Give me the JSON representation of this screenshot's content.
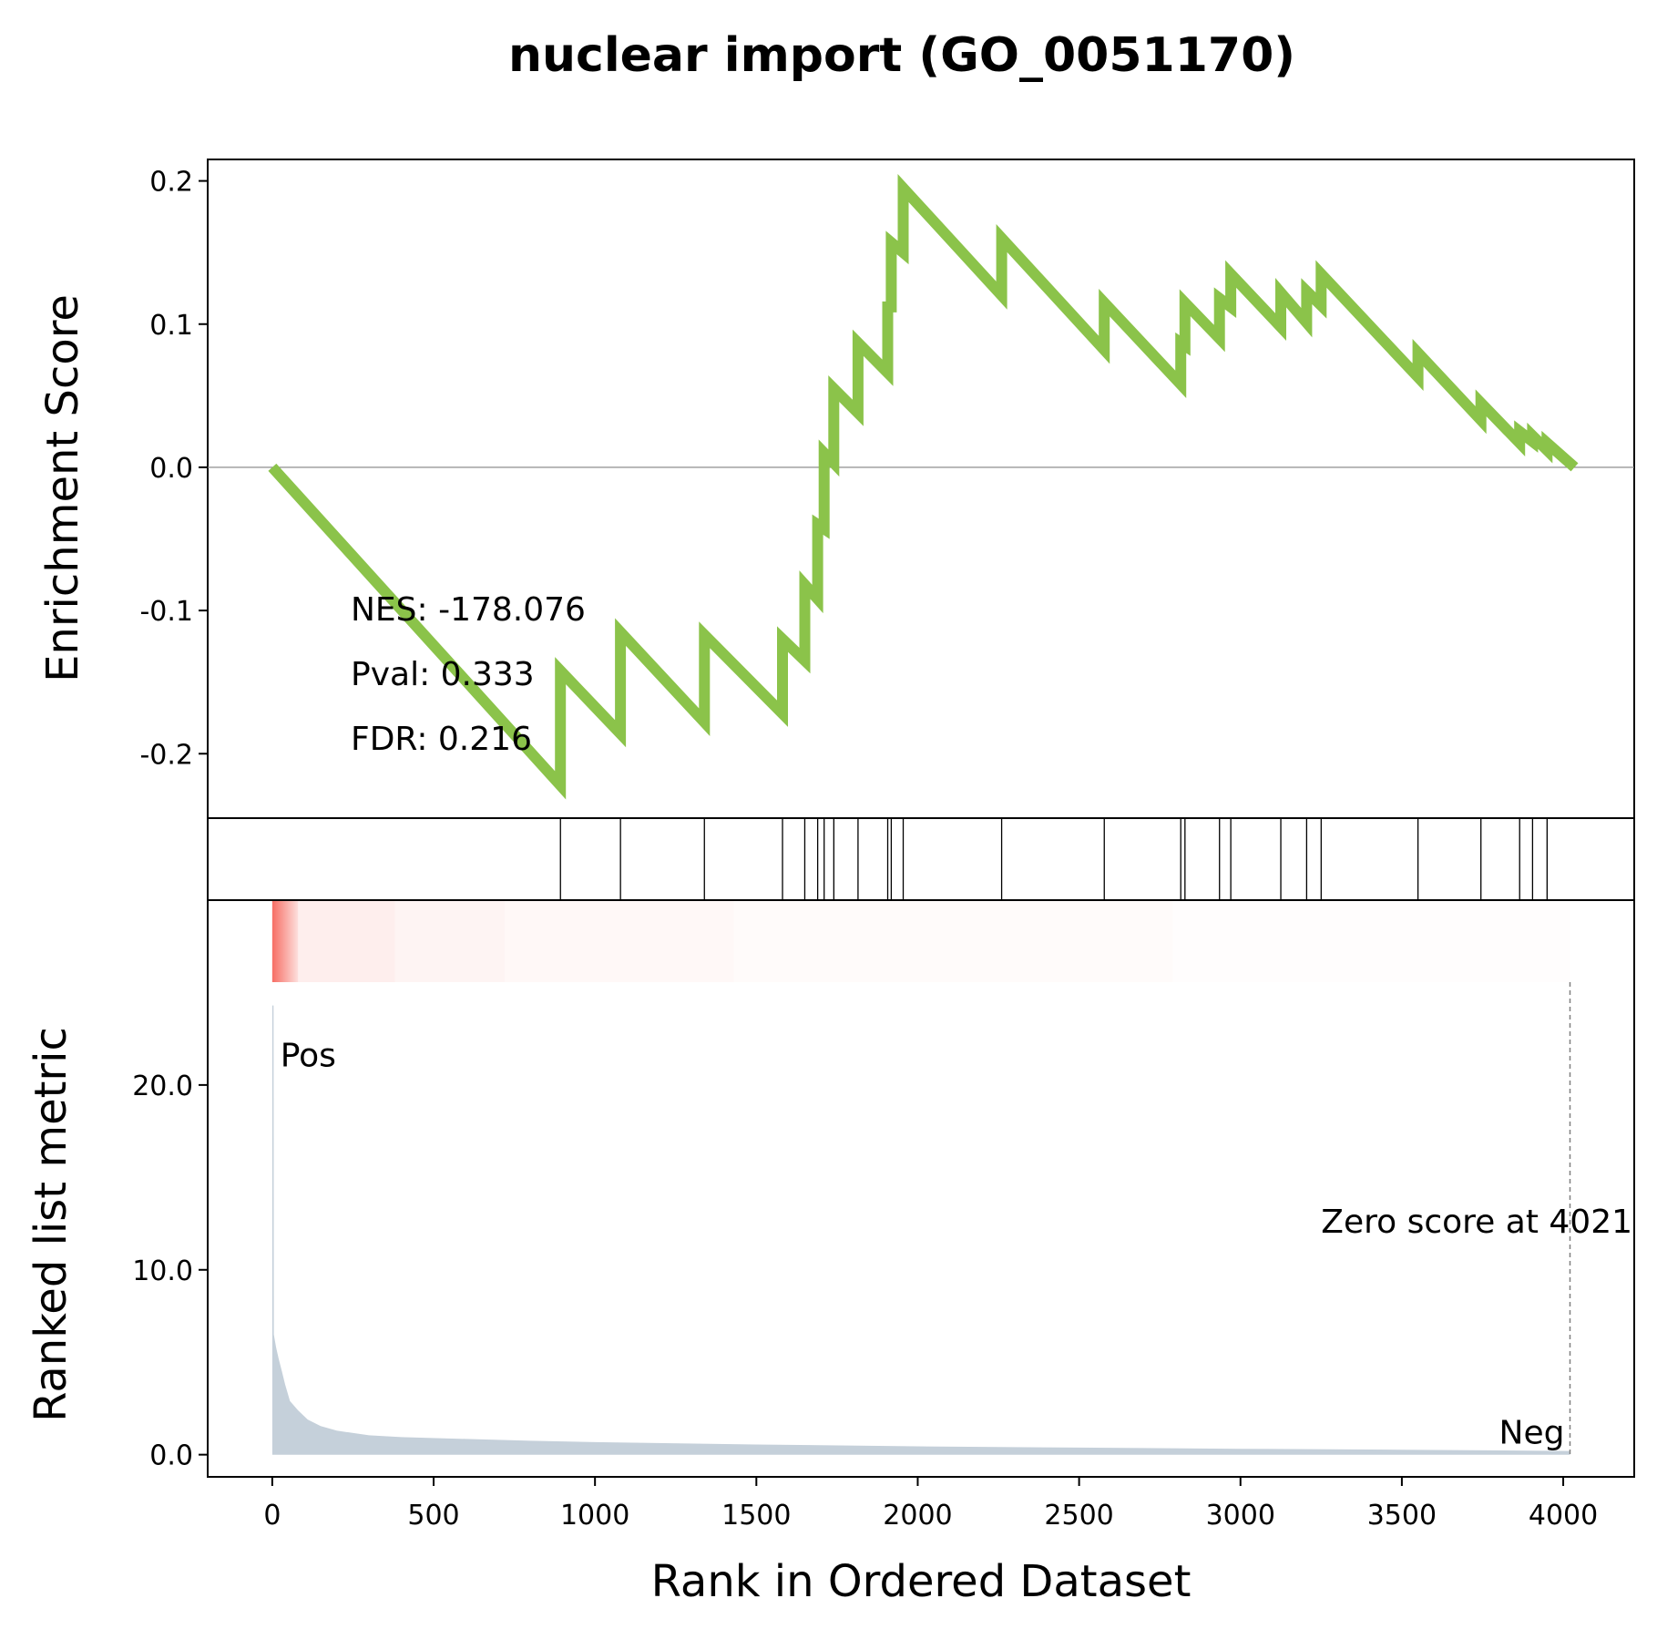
{
  "chart_data": {
    "type": "line",
    "title": "nuclear import (GO_0051170)",
    "xlabel": "Rank in Ordered Dataset",
    "xlim": [
      -200,
      4220
    ],
    "x_ticks": [
      0,
      500,
      1000,
      1500,
      2000,
      2500,
      3000,
      3500,
      4000
    ],
    "x_tick_labels": [
      "0",
      "500",
      "1000",
      "1500",
      "2000",
      "2500",
      "3000",
      "3500",
      "4000"
    ],
    "colors": {
      "es_line": "#8bc34a",
      "metric_fill": "#c5d0da",
      "pos_label": "#ff0000",
      "neg_label": "#0000ff",
      "heat": "#f44336"
    },
    "enrichment": {
      "ylabel": "Enrichment Score",
      "ylim": [
        -0.245,
        0.215
      ],
      "y_ticks": [
        0.2,
        0.1,
        0.0,
        -0.1,
        -0.2
      ],
      "y_tick_labels": [
        "0.2",
        "0.1",
        "0.0",
        "-0.1",
        "-0.2"
      ],
      "points": [
        [
          0,
          0.0
        ],
        [
          893,
          -0.222
        ],
        [
          893,
          -0.142
        ],
        [
          1079,
          -0.186
        ],
        [
          1079,
          -0.115
        ],
        [
          1339,
          -0.178
        ],
        [
          1339,
          -0.117
        ],
        [
          1581,
          -0.172
        ],
        [
          1581,
          -0.12
        ],
        [
          1650,
          -0.135
        ],
        [
          1650,
          -0.082
        ],
        [
          1690,
          -0.092
        ],
        [
          1690,
          -0.04
        ],
        [
          1710,
          -0.043
        ],
        [
          1710,
          0.01
        ],
        [
          1740,
          0.003
        ],
        [
          1740,
          0.055
        ],
        [
          1815,
          0.038
        ],
        [
          1815,
          0.087
        ],
        [
          1907,
          0.066
        ],
        [
          1907,
          0.112
        ],
        [
          1918,
          0.112
        ],
        [
          1918,
          0.157
        ],
        [
          1955,
          0.15
        ],
        [
          1955,
          0.195
        ],
        [
          2260,
          0.12
        ],
        [
          2260,
          0.16
        ],
        [
          2578,
          0.082
        ],
        [
          2578,
          0.115
        ],
        [
          2815,
          0.058
        ],
        [
          2815,
          0.087
        ],
        [
          2828,
          0.085
        ],
        [
          2828,
          0.115
        ],
        [
          2935,
          0.09
        ],
        [
          2935,
          0.118
        ],
        [
          2970,
          0.112
        ],
        [
          2970,
          0.135
        ],
        [
          3125,
          0.098
        ],
        [
          3125,
          0.122
        ],
        [
          3205,
          0.101
        ],
        [
          3205,
          0.123
        ],
        [
          3250,
          0.113
        ],
        [
          3250,
          0.135
        ],
        [
          3550,
          0.063
        ],
        [
          3550,
          0.08
        ],
        [
          3745,
          0.033
        ],
        [
          3745,
          0.045
        ],
        [
          3865,
          0.017
        ],
        [
          3865,
          0.025
        ],
        [
          3905,
          0.018
        ],
        [
          3905,
          0.022
        ],
        [
          3950,
          0.012
        ],
        [
          3950,
          0.017
        ],
        [
          4035,
          0.0
        ]
      ]
    },
    "hits": [
      893,
      1079,
      1339,
      1581,
      1650,
      1690,
      1710,
      1740,
      1815,
      1907,
      1918,
      1955,
      2260,
      2578,
      2815,
      2828,
      2935,
      2970,
      3125,
      3205,
      3250,
      3550,
      3745,
      3865,
      3905,
      3950
    ],
    "metric": {
      "ylabel": "Ranked list metric",
      "ylim": [
        -1.2,
        30.0
      ],
      "y_ticks": [
        20.0,
        10.0,
        0.0
      ],
      "y_tick_labels": [
        "20.0",
        "10.0",
        "0.0"
      ],
      "points": [
        [
          0,
          24.3
        ],
        [
          4,
          24.3
        ],
        [
          5,
          6.5
        ],
        [
          12,
          5.8
        ],
        [
          20,
          5.2
        ],
        [
          30,
          4.5
        ],
        [
          40,
          3.8
        ],
        [
          55,
          2.9
        ],
        [
          80,
          2.4
        ],
        [
          110,
          1.9
        ],
        [
          150,
          1.55
        ],
        [
          200,
          1.3
        ],
        [
          300,
          1.05
        ],
        [
          400,
          0.95
        ],
        [
          600,
          0.85
        ],
        [
          800,
          0.75
        ],
        [
          1000,
          0.68
        ],
        [
          1500,
          0.55
        ],
        [
          2000,
          0.45
        ],
        [
          2500,
          0.38
        ],
        [
          3000,
          0.32
        ],
        [
          3500,
          0.27
        ],
        [
          4021,
          0.2
        ],
        [
          4021,
          0.0
        ]
      ],
      "zero_score_label": "Zero score at 4021",
      "zero_score_rank": 4021,
      "pos_label": "Pos",
      "neg_label": "Neg"
    },
    "heat_segments": [
      {
        "from": 0,
        "to": 380,
        "strength": 0.09
      },
      {
        "from": 380,
        "to": 720,
        "strength": 0.06
      },
      {
        "from": 720,
        "to": 1430,
        "strength": 0.04
      },
      {
        "from": 1430,
        "to": 2790,
        "strength": 0.025
      },
      {
        "from": 2790,
        "to": 4021,
        "strength": 0.01
      }
    ],
    "stats": {
      "nes": "NES: -178.076",
      "pval": "Pval: 0.333",
      "fdr": "FDR: 0.216"
    }
  }
}
